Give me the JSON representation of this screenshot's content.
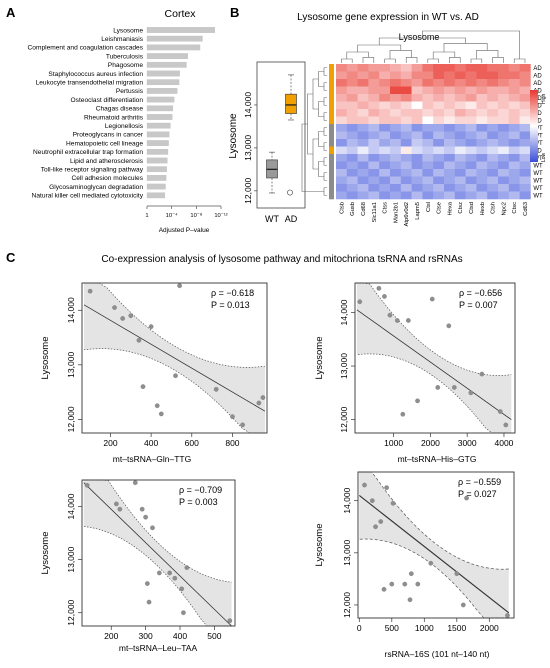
{
  "panel_a": {
    "label": "A",
    "chart_data": {
      "type": "bar",
      "title": "Cortex",
      "xlabel": "Adjusted P–value",
      "x_ticks": [
        "1",
        "10⁻⁴",
        "10⁻⁸",
        "10⁻¹²"
      ],
      "xlim": [
        0,
        12
      ],
      "x_scale": "-log10",
      "categories": [
        "Lysosome",
        "Leishmaniasis",
        "Complement and coagulation cascades",
        "Tuberculosis",
        "Phagosome",
        "Staphylococcus aureus infection",
        "Leukocyte transendothelial migration",
        "Pertussis",
        "Osteoclast differentiation",
        "Chagas disease",
        "Rheumatoid arthritis",
        "Legionellosis",
        "Proteoglycans in cancer",
        "Hematopoietic cell lineage",
        "Neutrophil extracellular trap formation",
        "Lipid and atherosclerosis",
        "Toll-like receptor signaling pathway",
        "Cell adhesion molecules",
        "Glycosaminoglycan degradation",
        "Natural killer cell mediated cytotoxicity"
      ],
      "values": [
        11.0,
        9.0,
        8.6,
        6.6,
        6.4,
        5.3,
        5.2,
        4.9,
        4.4,
        4.2,
        4.1,
        3.8,
        3.6,
        3.5,
        3.4,
        3.3,
        3.2,
        3.1,
        3.0,
        2.9
      ]
    }
  },
  "panel_b": {
    "label": "B",
    "title": "Lysosome gene expression in WT vs. AD",
    "boxplot": {
      "type": "box",
      "ylabel": "Lysosome",
      "y_ticks": [
        "12,000",
        "13,000",
        "14,000"
      ],
      "ylim": [
        11600,
        15000
      ],
      "groups": [
        {
          "name": "WT",
          "color": "#9a9a9a",
          "min": 11950,
          "q1": 12300,
          "median": 12500,
          "q3": 12720,
          "max": 12900,
          "outliers": [
            11960
          ]
        },
        {
          "name": "AD",
          "color": "#f0a000",
          "min": 13650,
          "q1": 13800,
          "median": 14000,
          "q3": 14250,
          "max": 14700,
          "outliers": []
        }
      ]
    },
    "heatmap": {
      "type": "heatmap",
      "col_group": "Lysosome",
      "legend_high": "High",
      "legend_low": "Low",
      "columns": [
        "Ctsb",
        "Gusb",
        "Cd68",
        "Slc11a1",
        "Ctss",
        "Man2b1",
        "Atp6v0d2",
        "Lapm5",
        "Ctsl",
        "Ctse",
        "Hexa",
        "Ctsz",
        "Ctsd",
        "Hexb",
        "Ctsh",
        "Npc2",
        "Ctsc",
        "Cd63"
      ],
      "rows": [
        "AD",
        "AD",
        "AD",
        "AD",
        "AD",
        "AD",
        "AD",
        "AD",
        "WT",
        "WT",
        "WT",
        "AD",
        "WT",
        "WT",
        "WT",
        "WT",
        "WT",
        "WT"
      ],
      "values": [
        [
          0.6,
          0.5,
          0.6,
          0.5,
          0.5,
          0.4,
          0.3,
          0.5,
          0.7,
          0.8,
          0.8,
          0.7,
          0.8,
          0.8,
          0.7,
          0.7,
          0.6,
          0.7
        ],
        [
          0.5,
          0.6,
          0.5,
          0.6,
          0.4,
          0.5,
          0.4,
          0.6,
          0.6,
          0.8,
          0.7,
          0.8,
          0.7,
          0.8,
          0.8,
          0.7,
          0.7,
          0.6
        ],
        [
          0.7,
          0.6,
          0.7,
          0.5,
          0.6,
          0.7,
          0.6,
          0.5,
          0.7,
          0.6,
          0.7,
          0.6,
          0.7,
          0.6,
          0.7,
          0.6,
          0.5,
          0.6
        ],
        [
          0.5,
          0.4,
          0.4,
          0.5,
          0.5,
          0.9,
          0.9,
          0.3,
          0.4,
          0.5,
          0.4,
          0.5,
          0.4,
          0.5,
          0.4,
          0.4,
          0.5,
          0.4
        ],
        [
          0.4,
          0.5,
          0.3,
          0.4,
          0.6,
          0.5,
          0.6,
          0.4,
          0.3,
          0.4,
          0.3,
          0.4,
          0.5,
          0.3,
          0.4,
          0.3,
          0.4,
          0.5
        ],
        [
          0.3,
          0.3,
          0.4,
          0.3,
          0.2,
          0.3,
          0.2,
          0.0,
          0.3,
          0.2,
          0.3,
          0.2,
          0.1,
          0.3,
          0.2,
          0.3,
          0.2,
          0.3
        ],
        [
          0.4,
          0.3,
          0.2,
          0.4,
          0.3,
          0.2,
          0.3,
          0.3,
          0.2,
          0.3,
          0.2,
          0.4,
          0.3,
          0.2,
          0.3,
          0.2,
          0.3,
          0.2
        ],
        [
          0.2,
          0.3,
          0.3,
          0.2,
          0.3,
          0.3,
          0.2,
          0.3,
          0.0,
          0.2,
          0.1,
          0.2,
          0.2,
          0.1,
          0.2,
          0.2,
          0.3,
          0.1
        ],
        [
          -0.5,
          -0.6,
          -0.5,
          -0.4,
          -0.6,
          -0.5,
          -0.4,
          -0.6,
          -0.5,
          -0.5,
          -0.6,
          -0.5,
          -0.4,
          -0.6,
          -0.5,
          -0.6,
          -0.5,
          -0.4
        ],
        [
          -0.4,
          -0.5,
          -0.6,
          -0.5,
          -0.4,
          -0.6,
          -0.5,
          -0.4,
          -0.6,
          -0.4,
          -0.5,
          -0.6,
          -0.5,
          -0.4,
          -0.6,
          -0.5,
          -0.4,
          -0.6
        ],
        [
          -0.6,
          -0.4,
          -0.5,
          -0.3,
          -0.5,
          -0.4,
          -0.6,
          -0.3,
          -0.4,
          -0.6,
          -0.4,
          -0.5,
          -0.6,
          -0.5,
          -0.4,
          -0.5,
          -0.6,
          -0.5
        ],
        [
          -0.2,
          -0.3,
          -0.1,
          -0.3,
          -0.2,
          -0.3,
          0.1,
          -0.2,
          -0.3,
          -0.2,
          -0.3,
          -0.1,
          -0.2,
          -0.3,
          -0.2,
          -0.1,
          -0.3,
          -0.2
        ],
        [
          -0.5,
          -0.6,
          -0.4,
          -0.6,
          -0.5,
          -0.4,
          -0.5,
          -0.6,
          -0.4,
          -0.5,
          -0.6,
          -0.4,
          -0.5,
          -0.6,
          -0.4,
          -0.5,
          -0.6,
          -0.4
        ],
        [
          -0.6,
          -0.5,
          -0.6,
          -0.4,
          -0.6,
          -0.5,
          -0.4,
          -0.6,
          -0.5,
          -0.6,
          -0.4,
          -0.5,
          -0.6,
          -0.4,
          -0.5,
          -0.6,
          -0.4,
          -0.5
        ],
        [
          -0.4,
          -0.6,
          -0.5,
          -0.6,
          -0.4,
          -0.6,
          -0.5,
          -0.4,
          -0.6,
          -0.4,
          -0.5,
          -0.6,
          -0.4,
          -0.5,
          -0.6,
          -0.4,
          -0.5,
          -0.6
        ],
        [
          -0.5,
          -0.4,
          -0.6,
          -0.5,
          -0.6,
          -0.4,
          -0.6,
          -0.5,
          -0.4,
          -0.6,
          -0.5,
          -0.4,
          -0.6,
          -0.5,
          -0.4,
          -0.6,
          -0.5,
          -0.4
        ],
        [
          -0.6,
          -0.5,
          -0.4,
          -0.6,
          -0.5,
          -0.6,
          -0.4,
          -0.6,
          -0.5,
          -0.4,
          -0.6,
          -0.5,
          -0.4,
          -0.6,
          -0.5,
          -0.4,
          -0.6,
          -0.5
        ],
        [
          -0.5,
          -0.6,
          -0.5,
          -0.4,
          -0.6,
          -0.5,
          -0.6,
          -0.4,
          -0.6,
          -0.5,
          -0.4,
          -0.6,
          -0.5,
          -0.4,
          -0.6,
          -0.5,
          -0.4,
          -0.6
        ]
      ]
    }
  },
  "panel_c": {
    "label": "C",
    "title": "Co-expression analysis of lysosome pathway and mitochriona tsRNA and rsRNAs",
    "chart_data": [
      {
        "type": "scatter",
        "xlabel": "mt–tsRNA–Gln–TTG",
        "ylabel": "Lysosome",
        "rho": "ρ = −0.618",
        "p": "P = 0.013",
        "xlim": [
          60,
          970
        ],
        "ylim": [
          11750,
          14500
        ],
        "x_ticks": [
          200,
          400,
          600,
          800
        ],
        "y_ticks": [
          12000,
          13000,
          14000
        ],
        "x": [
          100,
          220,
          260,
          300,
          340,
          360,
          400,
          430,
          450,
          520,
          540,
          720,
          800,
          850,
          930,
          950
        ],
        "y": [
          14350,
          14050,
          13850,
          13900,
          13450,
          12600,
          13700,
          12250,
          12100,
          12800,
          14450,
          12550,
          12050,
          11900,
          12300,
          12400
        ],
        "fit": {
          "x": [
            70,
            960
          ],
          "y": [
            14100,
            12150
          ]
        }
      },
      {
        "type": "scatter",
        "xlabel": "mt–tsRNA–His–GTG",
        "ylabel": "Lysosome",
        "rho": "ρ = −0.656",
        "p": "P = 0.007",
        "xlim": [
          -50,
          4300
        ],
        "ylim": [
          11750,
          14550
        ],
        "x_ticks": [
          1000,
          2000,
          3000,
          4000
        ],
        "y_ticks": [
          12000,
          13000,
          14000
        ],
        "x": [
          80,
          600,
          750,
          900,
          1100,
          1250,
          1400,
          1650,
          2050,
          2200,
          2500,
          2650,
          3100,
          3400,
          3900,
          4050
        ],
        "y": [
          14200,
          14450,
          14300,
          13950,
          13850,
          12100,
          13850,
          12350,
          14250,
          12600,
          13750,
          12600,
          12500,
          12850,
          12150,
          11900
        ],
        "fit": {
          "x": [
            0,
            4200
          ],
          "y": [
            14050,
            12000
          ]
        }
      },
      {
        "type": "scatter",
        "xlabel": "mt–tsRNA–Leu–TAA",
        "ylabel": "Lysosome",
        "rho": "ρ = −0.709",
        "p": "P = 0.003",
        "xlim": [
          115,
          560
        ],
        "ylim": [
          11750,
          14500
        ],
        "x_ticks": [
          200,
          300,
          400,
          500
        ],
        "y_ticks": [
          12000,
          13000,
          14000
        ],
        "x": [
          130,
          215,
          225,
          270,
          290,
          300,
          305,
          310,
          320,
          340,
          370,
          385,
          405,
          410,
          420,
          545
        ],
        "y": [
          14400,
          14050,
          13950,
          14450,
          13950,
          13800,
          12550,
          12200,
          13600,
          12750,
          12750,
          12650,
          12450,
          12000,
          12850,
          11850
        ],
        "fit": {
          "x": [
            120,
            550
          ],
          "y": [
            14450,
            11750
          ]
        }
      },
      {
        "type": "scatter",
        "xlabel": "rsRNA–16S (101 nt–140 nt)",
        "ylabel": "Lysosome",
        "rho": "ρ = −0.559",
        "p": "P = 0.027",
        "xlim": [
          -20,
          2380
        ],
        "ylim": [
          11750,
          14550
        ],
        "x_ticks": [
          0,
          500,
          1000,
          1500,
          2000
        ],
        "y_ticks": [
          12000,
          13000,
          14000
        ],
        "x": [
          80,
          200,
          250,
          330,
          380,
          420,
          500,
          520,
          700,
          780,
          800,
          900,
          1100,
          1500,
          1600,
          1650,
          2280
        ],
        "y": [
          14300,
          14000,
          13500,
          13600,
          12300,
          14250,
          12400,
          13950,
          12400,
          12100,
          12600,
          12400,
          12800,
          12600,
          12000,
          14050,
          11800
        ],
        "fit": {
          "x": [
            0,
            2300
          ],
          "y": [
            14100,
            11850
          ]
        }
      }
    ]
  }
}
